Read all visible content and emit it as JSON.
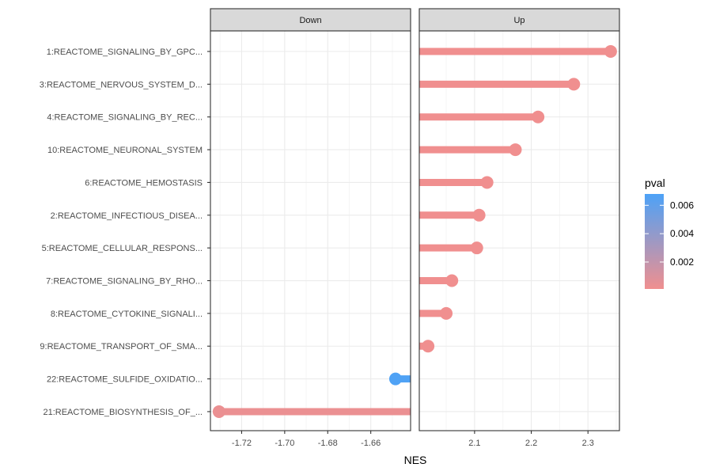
{
  "chart_data": {
    "type": "lollipop",
    "x_axis_label": "NES",
    "facets": [
      {
        "name": "Down",
        "xlim": [
          -1.7345,
          -1.6415
        ],
        "ticks": [
          -1.72,
          -1.7,
          -1.68,
          -1.66
        ],
        "tick_labels": [
          "-1.72",
          "-1.70",
          "-1.68",
          "-1.66"
        ],
        "baseline": -1.6415
      },
      {
        "name": "Up",
        "xlim": [
          2.0025,
          2.3555
        ],
        "ticks": [
          2.1,
          2.2,
          2.3
        ],
        "tick_labels": [
          "2.1",
          "2.2",
          "2.3"
        ],
        "baseline": 2.0025
      }
    ],
    "categories": [
      "1:REACTOME_SIGNALING_BY_GPC...",
      "3:REACTOME_NERVOUS_SYSTEM_D...",
      "4:REACTOME_SIGNALING_BY_REC...",
      "10:REACTOME_NEURONAL_SYSTEM",
      "6:REACTOME_HEMOSTASIS",
      "2:REACTOME_INFECTIOUS_DISEA...",
      "5:REACTOME_CELLULAR_RESPONS...",
      "7:REACTOME_SIGNALING_BY_RHO...",
      "8:REACTOME_CYTOKINE_SIGNALI...",
      "9:REACTOME_TRANSPORT_OF_SMA...",
      "22:REACTOME_SULFIDE_OXIDATIO...",
      "21:REACTOME_BIOSYNTHESIS_OF_..."
    ],
    "points": [
      {
        "category": "1:REACTOME_SIGNALING_BY_GPC...",
        "facet": "Up",
        "nes": 2.34,
        "pval": 0.0001
      },
      {
        "category": "3:REACTOME_NERVOUS_SYSTEM_D...",
        "facet": "Up",
        "nes": 2.275,
        "pval": 0.0001
      },
      {
        "category": "4:REACTOME_SIGNALING_BY_REC...",
        "facet": "Up",
        "nes": 2.212,
        "pval": 0.0001
      },
      {
        "category": "10:REACTOME_NEURONAL_SYSTEM",
        "facet": "Up",
        "nes": 2.172,
        "pval": 0.0001
      },
      {
        "category": "6:REACTOME_HEMOSTASIS",
        "facet": "Up",
        "nes": 2.122,
        "pval": 0.0001
      },
      {
        "category": "2:REACTOME_INFECTIOUS_DISEA...",
        "facet": "Up",
        "nes": 2.108,
        "pval": 0.0001
      },
      {
        "category": "5:REACTOME_CELLULAR_RESPONS...",
        "facet": "Up",
        "nes": 2.104,
        "pval": 0.0001
      },
      {
        "category": "7:REACTOME_SIGNALING_BY_RHO...",
        "facet": "Up",
        "nes": 2.06,
        "pval": 0.0001
      },
      {
        "category": "8:REACTOME_CYTOKINE_SIGNALI...",
        "facet": "Up",
        "nes": 2.05,
        "pval": 0.0001
      },
      {
        "category": "9:REACTOME_TRANSPORT_OF_SMA...",
        "facet": "Up",
        "nes": 2.018,
        "pval": 0.0001
      },
      {
        "category": "22:REACTOME_SULFIDE_OXIDATIO...",
        "facet": "Down",
        "nes": -1.6485,
        "pval": 0.0067
      },
      {
        "category": "21:REACTOME_BIOSYNTHESIS_OF_...",
        "facet": "Down",
        "nes": -1.7305,
        "pval": 0.0003
      }
    ],
    "legend": {
      "title": "pval",
      "labels": [
        "0.006",
        "0.004",
        "0.002"
      ],
      "values": [
        0.006,
        0.004,
        0.002
      ],
      "range": [
        0.0001,
        0.0068
      ],
      "color_low": "#F08F8F",
      "color_high": "#4DA2F7",
      "position": "right"
    },
    "grid": true,
    "colors": {
      "strip_fill": "#D9D9D9",
      "grid_major": "#EBEBEB",
      "grid_minor": "#F5F5F5",
      "panel_border": "#333333"
    }
  }
}
